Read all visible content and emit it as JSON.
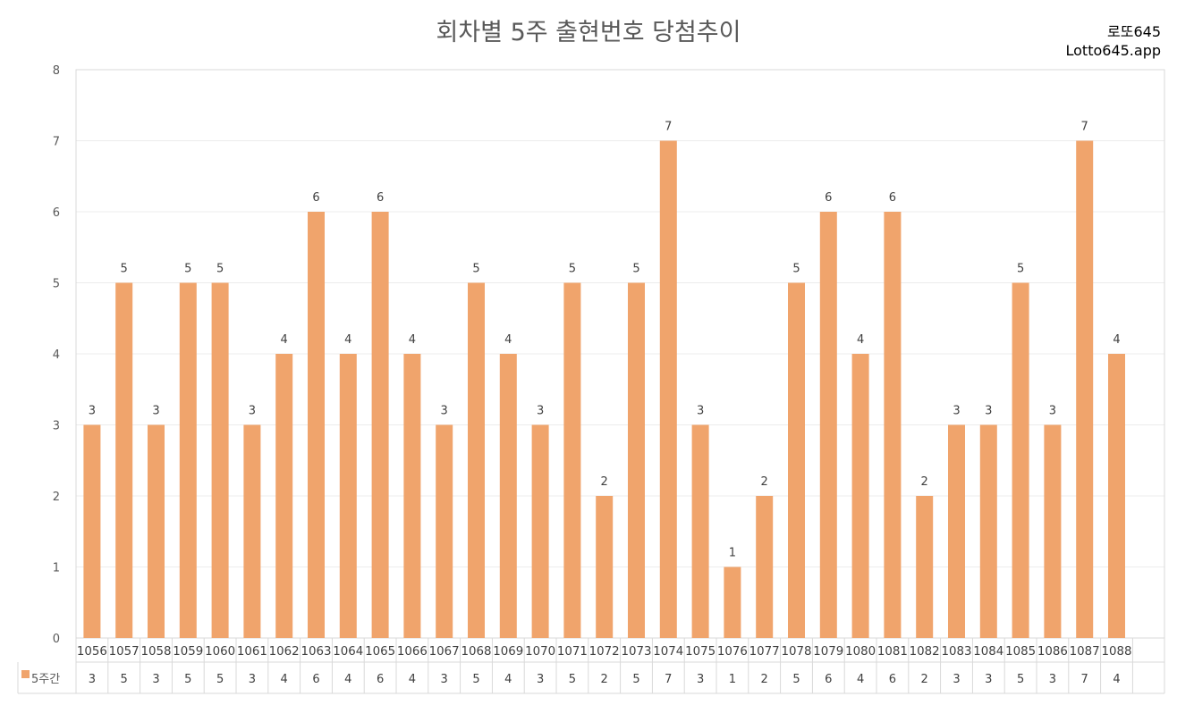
{
  "header": {
    "title": "회차별 5주 출현번호 당첨추이",
    "brand_line1": "로또645",
    "brand_line2": "Lotto645.app"
  },
  "chart_data": {
    "type": "bar",
    "title": "회차별 5주 출현번호 당첨추이",
    "xlabel": "",
    "ylabel": "",
    "ylim": [
      0,
      8
    ],
    "yticks": [
      0,
      1,
      2,
      3,
      4,
      5,
      6,
      7,
      8
    ],
    "grid": true,
    "legend": "data-table",
    "categories": [
      "1056",
      "1057",
      "1058",
      "1059",
      "1060",
      "1061",
      "1062",
      "1063",
      "1064",
      "1065",
      "1066",
      "1067",
      "1068",
      "1069",
      "1070",
      "1071",
      "1072",
      "1073",
      "1074",
      "1075",
      "1076",
      "1077",
      "1078",
      "1079",
      "1080",
      "1081",
      "1082",
      "1083",
      "1084",
      "1085",
      "1086",
      "1087",
      "1088"
    ],
    "series": [
      {
        "name": "5주간",
        "color": "#F0A46C",
        "values": [
          3,
          5,
          3,
          5,
          5,
          3,
          4,
          6,
          4,
          6,
          4,
          3,
          5,
          4,
          3,
          5,
          2,
          5,
          7,
          3,
          1,
          2,
          5,
          6,
          4,
          6,
          2,
          3,
          3,
          5,
          3,
          7,
          4
        ]
      }
    ]
  }
}
